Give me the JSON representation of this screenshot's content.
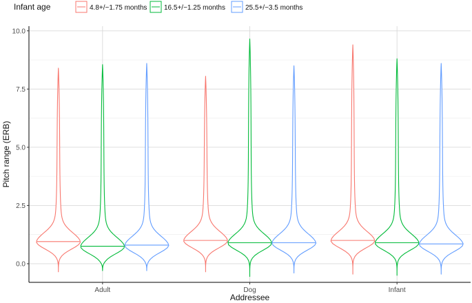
{
  "chart_data": {
    "type": "violin",
    "title": "",
    "xlabel": "Addressee",
    "ylabel": "Pitch range (ERB)",
    "ylim": [
      -0.8,
      10.2
    ],
    "yticks": [
      0.0,
      2.5,
      5.0,
      7.5,
      10.0
    ],
    "ytick_labels": [
      "0.0",
      "2.5",
      "5.0",
      "7.5",
      "10.0"
    ],
    "grid": true,
    "legend": {
      "title": "Infant age",
      "placement": "top"
    },
    "categories": [
      "Adult",
      "Dog",
      "Infant"
    ],
    "series": [
      {
        "name": "4.8+/−1.75 months",
        "color": "#F8766D",
        "stats": [
          {
            "category": "Adult",
            "min": -0.35,
            "max": 8.4,
            "median": 0.95
          },
          {
            "category": "Dog",
            "min": -0.35,
            "max": 8.05,
            "median": 1.0
          },
          {
            "category": "Infant",
            "min": -0.45,
            "max": 9.4,
            "median": 1.0
          }
        ]
      },
      {
        "name": "16.5+/−1.25 months",
        "color": "#00BA38",
        "stats": [
          {
            "category": "Adult",
            "min": -0.3,
            "max": 8.55,
            "median": 0.75
          },
          {
            "category": "Dog",
            "min": -0.55,
            "max": 9.65,
            "median": 0.9
          },
          {
            "category": "Infant",
            "min": -0.5,
            "max": 8.8,
            "median": 0.9
          }
        ]
      },
      {
        "name": "25.5+/−3.5 months",
        "color": "#619CFF",
        "stats": [
          {
            "category": "Adult",
            "min": -0.3,
            "max": 8.6,
            "median": 0.8
          },
          {
            "category": "Dog",
            "min": -0.4,
            "max": 8.5,
            "median": 0.9
          },
          {
            "category": "Infant",
            "min": -0.45,
            "max": 8.6,
            "median": 0.85
          }
        ]
      }
    ]
  }
}
